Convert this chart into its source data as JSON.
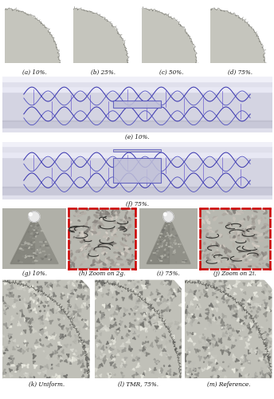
{
  "fig_width": 3.44,
  "fig_height": 5.0,
  "dpi": 100,
  "bg_color": "#ffffff",
  "row1_labels": [
    "(a) 10%.",
    "(b) 25%.",
    "(c) 50%.",
    "(d) 75%."
  ],
  "row2_label": "(e) 10%.",
  "row3_label": "(f) 75%.",
  "row4_labels": [
    "(g) 10%.",
    "(h) Zoom on 2g.",
    "(i) 75%.",
    "(j) Zoom on 2i."
  ],
  "row5_labels": [
    "(k) Uniform.",
    "(l) TMR, 75%.",
    "(m) Reference."
  ],
  "red_border_color": "#cc0000",
  "text_color": "#111111",
  "label_fontsize": 5.2,
  "artery_tube_color": "#d8d8e4",
  "artery_highlight": "#e8e8f0",
  "stent_blue": "#3333bb",
  "stent_purple": "#8855cc",
  "cross_section_fill": "#c8c8c0",
  "cross_section_edge": "#888880",
  "mesh_cone_bg": "#a8a8a0",
  "zoom_mesh_bg": "#b0b0a8",
  "bottom_mesh_bg": "#a0a0a0"
}
